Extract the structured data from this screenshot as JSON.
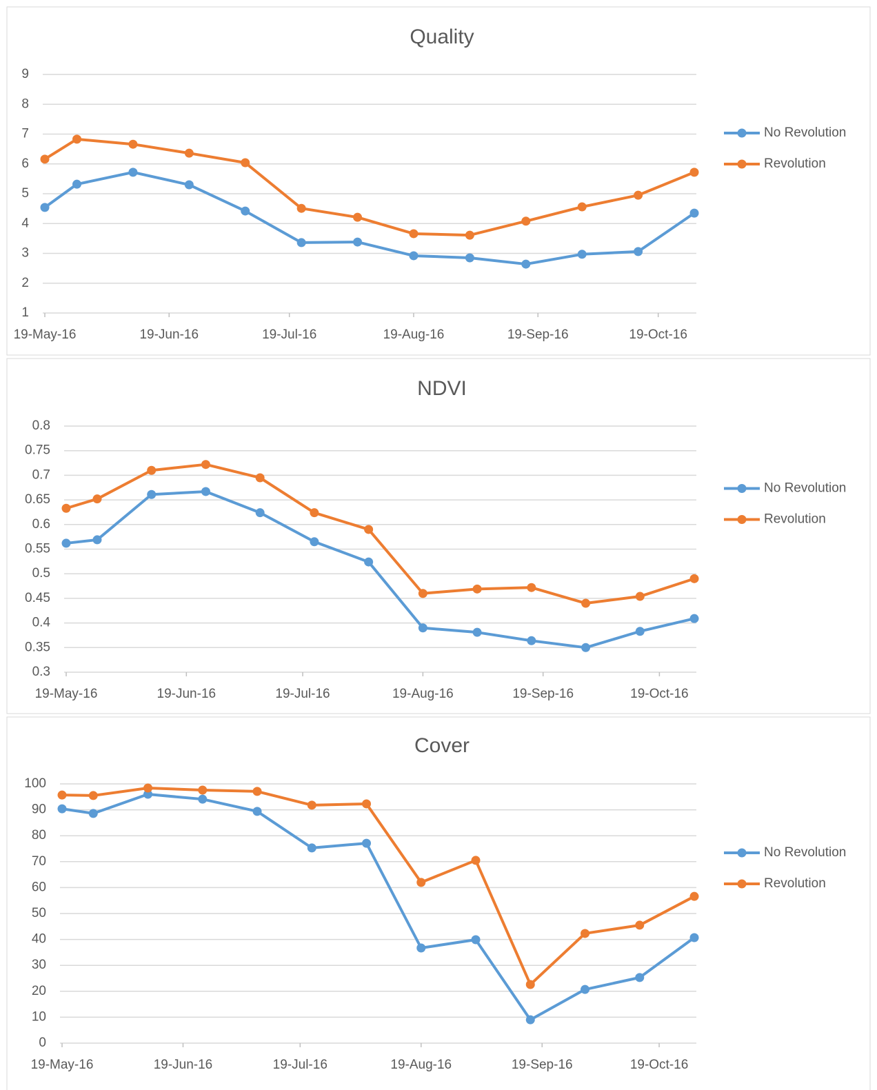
{
  "chart_data": [
    {
      "type": "line",
      "title": "Quality",
      "x": [
        "2016-05-19",
        "2016-05-27",
        "2016-06-10",
        "2016-06-24",
        "2016-07-08",
        "2016-07-22",
        "2016-08-05",
        "2016-08-19",
        "2016-09-02",
        "2016-09-16",
        "2016-09-30",
        "2016-10-14",
        "2016-10-28"
      ],
      "xlim": [
        "2016-05-19",
        "2016-10-28"
      ],
      "xticks": [
        {
          "value": "2016-05-19",
          "label": "19-May-16"
        },
        {
          "value": "2016-06-19",
          "label": "19-Jun-16"
        },
        {
          "value": "2016-07-19",
          "label": "19-Jul-16"
        },
        {
          "value": "2016-08-19",
          "label": "19-Aug-16"
        },
        {
          "value": "2016-09-19",
          "label": "19-Sep-16"
        },
        {
          "value": "2016-10-19",
          "label": "19-Oct-16"
        }
      ],
      "ylim": [
        1,
        9
      ],
      "yticks": [
        1,
        2,
        3,
        4,
        5,
        6,
        7,
        8,
        9
      ],
      "grid": true,
      "legend": "right",
      "series": [
        {
          "name": "No Revolution",
          "color": "#5b9bd5",
          "values": [
            4.54,
            5.32,
            5.72,
            5.3,
            4.42,
            3.36,
            3.38,
            2.92,
            2.85,
            2.64,
            2.97,
            3.06,
            4.35
          ]
        },
        {
          "name": "Revolution",
          "color": "#ed7d31",
          "values": [
            6.16,
            6.83,
            6.66,
            6.36,
            6.04,
            4.51,
            4.21,
            3.66,
            3.61,
            4.08,
            4.56,
            4.95,
            5.72
          ]
        }
      ]
    },
    {
      "type": "line",
      "title": "NDVI",
      "x": [
        "2016-05-19",
        "2016-05-27",
        "2016-06-10",
        "2016-06-24",
        "2016-07-08",
        "2016-07-22",
        "2016-08-05",
        "2016-08-19",
        "2016-09-02",
        "2016-09-16",
        "2016-09-30",
        "2016-10-14",
        "2016-10-28"
      ],
      "xlim": [
        "2016-05-19",
        "2016-10-28"
      ],
      "xticks": [
        {
          "value": "2016-05-19",
          "label": "19-May-16"
        },
        {
          "value": "2016-06-19",
          "label": "19-Jun-16"
        },
        {
          "value": "2016-07-19",
          "label": "19-Jul-16"
        },
        {
          "value": "2016-08-19",
          "label": "19-Aug-16"
        },
        {
          "value": "2016-09-19",
          "label": "19-Sep-16"
        },
        {
          "value": "2016-10-19",
          "label": "19-Oct-16"
        }
      ],
      "ylim": [
        0.3,
        0.8
      ],
      "yticks": [
        0.3,
        0.35,
        0.4,
        0.45,
        0.5,
        0.55,
        0.6,
        0.65,
        0.7,
        0.75,
        0.8
      ],
      "grid": true,
      "legend": "right",
      "series": [
        {
          "name": "No Revolution",
          "color": "#5b9bd5",
          "values": [
            0.562,
            0.569,
            0.661,
            0.667,
            0.624,
            0.565,
            0.524,
            0.39,
            0.381,
            0.364,
            0.35,
            0.383,
            0.409
          ]
        },
        {
          "name": "Revolution",
          "color": "#ed7d31",
          "values": [
            0.633,
            0.652,
            0.71,
            0.722,
            0.695,
            0.624,
            0.59,
            0.46,
            0.469,
            0.472,
            0.44,
            0.454,
            0.49
          ]
        }
      ]
    },
    {
      "type": "line",
      "title": "Cover",
      "x": [
        "2016-05-19",
        "2016-05-27",
        "2016-06-10",
        "2016-06-24",
        "2016-07-08",
        "2016-07-22",
        "2016-08-05",
        "2016-08-19",
        "2016-09-02",
        "2016-09-16",
        "2016-09-30",
        "2016-10-14",
        "2016-10-28"
      ],
      "xlim": [
        "2016-05-19",
        "2016-10-28"
      ],
      "xticks": [
        {
          "value": "2016-05-19",
          "label": "19-May-16"
        },
        {
          "value": "2016-06-19",
          "label": "19-Jun-16"
        },
        {
          "value": "2016-07-19",
          "label": "19-Jul-16"
        },
        {
          "value": "2016-08-19",
          "label": "19-Aug-16"
        },
        {
          "value": "2016-09-19",
          "label": "19-Sep-16"
        },
        {
          "value": "2016-10-19",
          "label": "19-Oct-16"
        }
      ],
      "ylim": [
        0,
        100
      ],
      "yticks": [
        0,
        10,
        20,
        30,
        40,
        50,
        60,
        70,
        80,
        90,
        100
      ],
      "grid": true,
      "legend": "right",
      "series": [
        {
          "name": "No Revolution",
          "color": "#5b9bd5",
          "values": [
            90.4,
            88.6,
            96.0,
            94.1,
            89.4,
            75.3,
            77.1,
            36.7,
            39.9,
            9.0,
            20.7,
            25.3,
            40.7
          ]
        },
        {
          "name": "Revolution",
          "color": "#ed7d31",
          "values": [
            95.7,
            95.5,
            98.4,
            97.6,
            97.1,
            91.8,
            92.3,
            62.0,
            70.5,
            22.6,
            42.3,
            45.5,
            56.6
          ]
        }
      ]
    }
  ]
}
